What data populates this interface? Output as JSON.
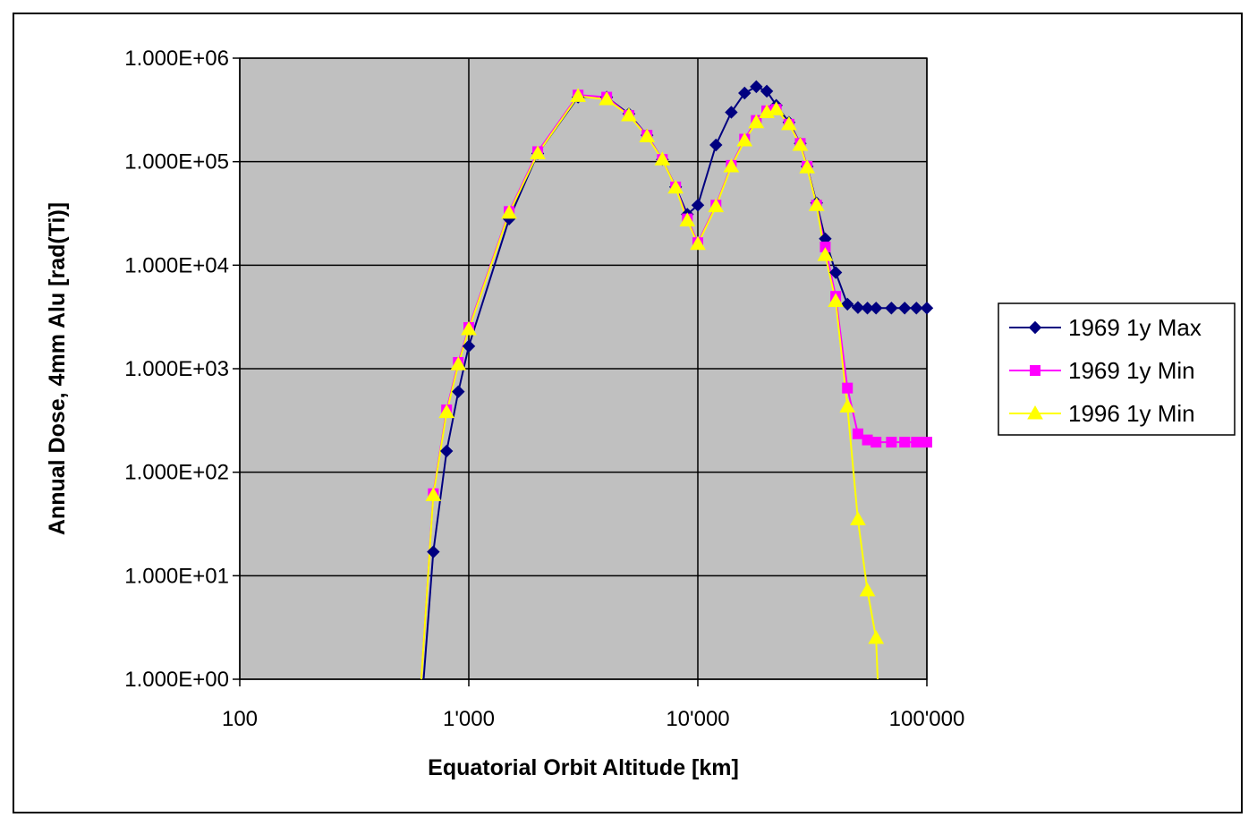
{
  "chart_data": {
    "type": "line",
    "xlabel": "Equatorial Orbit Altitude [km]",
    "ylabel": "Annual Dose, 4mm Alu [rad(Ti)]",
    "x_scale": "log",
    "y_scale": "log",
    "xlim": [
      100,
      100000
    ],
    "ylim": [
      1,
      1000000
    ],
    "x_ticks": [
      {
        "value": 100,
        "label": "100"
      },
      {
        "value": 1000,
        "label": "1'000"
      },
      {
        "value": 10000,
        "label": "10'000"
      },
      {
        "value": 100000,
        "label": "100'000"
      }
    ],
    "y_ticks": [
      {
        "value": 1,
        "label": "1.000E+00"
      },
      {
        "value": 10,
        "label": "1.000E+01"
      },
      {
        "value": 100,
        "label": "1.000E+02"
      },
      {
        "value": 1000,
        "label": "1.000E+03"
      },
      {
        "value": 10000,
        "label": "1.000E+04"
      },
      {
        "value": 100000,
        "label": "1.000E+05"
      },
      {
        "value": 1000000,
        "label": "1.000E+06"
      }
    ],
    "grid": true,
    "plot_background": "#c0c0c0",
    "legend_position": "right",
    "series": [
      {
        "name": "1969 1y Max",
        "color": "#000080",
        "marker": "diamond",
        "x": [
          635,
          700,
          800,
          900,
          1000,
          1500,
          2000,
          3000,
          4000,
          5000,
          6000,
          7000,
          8000,
          9000,
          10000,
          12000,
          14000,
          16000,
          18000,
          20000,
          22000,
          25000,
          28000,
          30000,
          33000,
          36000,
          40000,
          45000,
          50000,
          55000,
          60000,
          70000,
          80000,
          90000,
          100000
        ],
        "y": [
          1,
          17,
          160,
          600,
          1650,
          28000,
          120000,
          420000,
          420000,
          290000,
          180000,
          105000,
          57000,
          31000,
          38000,
          145000,
          300000,
          460000,
          530000,
          480000,
          350000,
          240000,
          150000,
          90000,
          40000,
          18000,
          8500,
          4200,
          3900,
          3850,
          3850,
          3850,
          3850,
          3850,
          3850
        ],
        "y_tail_marker_from_index": 1
      },
      {
        "name": "1969 1y Min",
        "color": "#ff00ff",
        "marker": "square",
        "x": [
          620,
          700,
          800,
          900,
          1000,
          1500,
          2000,
          3000,
          4000,
          5000,
          6000,
          7000,
          8000,
          9000,
          10000,
          12000,
          14000,
          16000,
          18000,
          20000,
          22000,
          25000,
          28000,
          30000,
          33000,
          36000,
          40000,
          45000,
          50000,
          55000,
          60000,
          70000,
          80000,
          90000,
          100000
        ],
        "y": [
          1,
          62,
          400,
          1150,
          2500,
          33000,
          125000,
          440000,
          420000,
          280000,
          180000,
          105000,
          57000,
          28000,
          16500,
          38000,
          92000,
          165000,
          250000,
          310000,
          320000,
          230000,
          150000,
          90000,
          38000,
          15000,
          5000,
          650,
          235,
          205,
          195,
          195,
          195,
          195,
          195
        ]
      },
      {
        "name": "1996 1y Min",
        "color": "#ffff00",
        "marker": "triangle",
        "x": [
          620,
          700,
          800,
          900,
          1000,
          1500,
          2000,
          3000,
          4000,
          5000,
          6000,
          7000,
          8000,
          9000,
          10000,
          12000,
          14000,
          16000,
          18000,
          20000,
          22000,
          25000,
          28000,
          30000,
          33000,
          36000,
          40000,
          45000,
          50000,
          55000,
          60000,
          61000
        ],
        "y": [
          1,
          60,
          380,
          1100,
          2400,
          32000,
          120000,
          430000,
          400000,
          280000,
          175000,
          105000,
          56000,
          27000,
          16000,
          37000,
          90000,
          160000,
          240000,
          300000,
          320000,
          230000,
          145000,
          88000,
          38000,
          12500,
          4500,
          430,
          35,
          7.2,
          2.5,
          1
        ]
      }
    ]
  }
}
